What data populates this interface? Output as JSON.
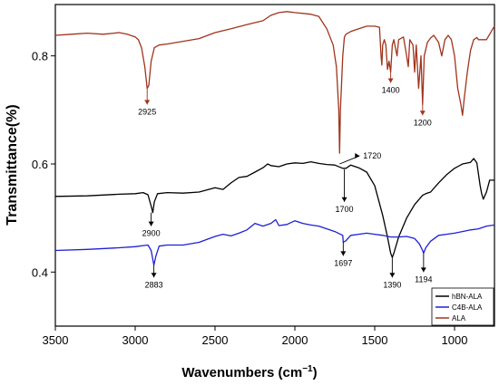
{
  "chart_data": {
    "type": "line",
    "title": "",
    "xlabel": "Wavenumbers",
    "xlabel_unit": "(cm",
    "xlabel_sup": "−1",
    "xlabel_close": ")",
    "ylabel": "Transmittance(%)",
    "xlim": [
      3500,
      750
    ],
    "x_reversed": true,
    "ylim": [
      0.3,
      0.895
    ],
    "grid": false,
    "legend_position": "bottom-right",
    "x_ticks": [
      3500,
      3000,
      2500,
      2000,
      1500,
      1000
    ],
    "x_tick_labels": [
      "3500",
      "3000",
      "2500",
      "2000",
      "1500",
      "1000"
    ],
    "y_ticks": [
      0.4,
      0.6,
      0.8
    ],
    "y_tick_labels": [
      "0.4",
      "0.6",
      "0.8"
    ],
    "series": [
      {
        "name": "hBN-ALA",
        "color": "#000000",
        "points": [
          [
            3500,
            0.54
          ],
          [
            3300,
            0.541
          ],
          [
            3100,
            0.544
          ],
          [
            3000,
            0.545
          ],
          [
            2950,
            0.547
          ],
          [
            2920,
            0.543
          ],
          [
            2900,
            0.522
          ],
          [
            2890,
            0.51
          ],
          [
            2880,
            0.53
          ],
          [
            2860,
            0.545
          ],
          [
            2800,
            0.547
          ],
          [
            2700,
            0.546
          ],
          [
            2600,
            0.548
          ],
          [
            2500,
            0.556
          ],
          [
            2450,
            0.553
          ],
          [
            2400,
            0.565
          ],
          [
            2350,
            0.575
          ],
          [
            2300,
            0.577
          ],
          [
            2250,
            0.585
          ],
          [
            2200,
            0.593
          ],
          [
            2170,
            0.6
          ],
          [
            2150,
            0.597
          ],
          [
            2100,
            0.595
          ],
          [
            2050,
            0.6
          ],
          [
            2000,
            0.602
          ],
          [
            1950,
            0.601
          ],
          [
            1900,
            0.604
          ],
          [
            1850,
            0.601
          ],
          [
            1800,
            0.599
          ],
          [
            1750,
            0.598
          ],
          [
            1700,
            0.592
          ],
          [
            1680,
            0.592
          ],
          [
            1650,
            0.598
          ],
          [
            1600,
            0.593
          ],
          [
            1550,
            0.585
          ],
          [
            1500,
            0.56
          ],
          [
            1450,
            0.505
          ],
          [
            1420,
            0.465
          ],
          [
            1400,
            0.435
          ],
          [
            1390,
            0.427
          ],
          [
            1380,
            0.435
          ],
          [
            1350,
            0.465
          ],
          [
            1300,
            0.5
          ],
          [
            1250,
            0.525
          ],
          [
            1200,
            0.542
          ],
          [
            1180,
            0.545
          ],
          [
            1150,
            0.548
          ],
          [
            1100,
            0.565
          ],
          [
            1050,
            0.58
          ],
          [
            1000,
            0.592
          ],
          [
            950,
            0.6
          ],
          [
            900,
            0.603
          ],
          [
            880,
            0.61
          ],
          [
            860,
            0.602
          ],
          [
            840,
            0.56
          ],
          [
            830,
            0.545
          ],
          [
            820,
            0.535
          ],
          [
            800,
            0.548
          ],
          [
            780,
            0.57
          ],
          [
            750,
            0.57
          ]
        ]
      },
      {
        "name": "C4B-ALA",
        "color": "#1f1fd6",
        "points": [
          [
            3500,
            0.44
          ],
          [
            3300,
            0.442
          ],
          [
            3100,
            0.445
          ],
          [
            3000,
            0.447
          ],
          [
            2950,
            0.449
          ],
          [
            2920,
            0.45
          ],
          [
            2900,
            0.44
          ],
          [
            2883,
            0.413
          ],
          [
            2870,
            0.43
          ],
          [
            2850,
            0.448
          ],
          [
            2800,
            0.45
          ],
          [
            2700,
            0.45
          ],
          [
            2600,
            0.455
          ],
          [
            2500,
            0.466
          ],
          [
            2450,
            0.47
          ],
          [
            2400,
            0.467
          ],
          [
            2350,
            0.472
          ],
          [
            2300,
            0.478
          ],
          [
            2250,
            0.49
          ],
          [
            2200,
            0.485
          ],
          [
            2150,
            0.49
          ],
          [
            2120,
            0.497
          ],
          [
            2100,
            0.486
          ],
          [
            2050,
            0.488
          ],
          [
            2000,
            0.495
          ],
          [
            1950,
            0.49
          ],
          [
            1900,
            0.487
          ],
          [
            1850,
            0.485
          ],
          [
            1800,
            0.48
          ],
          [
            1750,
            0.475
          ],
          [
            1700,
            0.468
          ],
          [
            1697,
            0.455
          ],
          [
            1680,
            0.458
          ],
          [
            1650,
            0.468
          ],
          [
            1600,
            0.47
          ],
          [
            1550,
            0.472
          ],
          [
            1500,
            0.47
          ],
          [
            1450,
            0.468
          ],
          [
            1400,
            0.465
          ],
          [
            1350,
            0.465
          ],
          [
            1300,
            0.466
          ],
          [
            1250,
            0.462
          ],
          [
            1220,
            0.452
          ],
          [
            1200,
            0.44
          ],
          [
            1194,
            0.435
          ],
          [
            1180,
            0.445
          ],
          [
            1150,
            0.457
          ],
          [
            1100,
            0.468
          ],
          [
            1050,
            0.47
          ],
          [
            1000,
            0.472
          ],
          [
            950,
            0.475
          ],
          [
            900,
            0.478
          ],
          [
            850,
            0.48
          ],
          [
            800,
            0.485
          ],
          [
            750,
            0.487
          ]
        ]
      },
      {
        "name": "ALA",
        "color": "#a0341c",
        "points": [
          [
            3500,
            0.838
          ],
          [
            3400,
            0.84
          ],
          [
            3300,
            0.842
          ],
          [
            3200,
            0.84
          ],
          [
            3100,
            0.843
          ],
          [
            3050,
            0.84
          ],
          [
            3000,
            0.835
          ],
          [
            2980,
            0.83
          ],
          [
            2960,
            0.815
          ],
          [
            2940,
            0.78
          ],
          [
            2925,
            0.74
          ],
          [
            2915,
            0.745
          ],
          [
            2900,
            0.79
          ],
          [
            2880,
            0.815
          ],
          [
            2850,
            0.82
          ],
          [
            2800,
            0.822
          ],
          [
            2700,
            0.827
          ],
          [
            2600,
            0.832
          ],
          [
            2500,
            0.843
          ],
          [
            2400,
            0.85
          ],
          [
            2300,
            0.858
          ],
          [
            2200,
            0.865
          ],
          [
            2150,
            0.875
          ],
          [
            2100,
            0.88
          ],
          [
            2050,
            0.882
          ],
          [
            2000,
            0.88
          ],
          [
            1900,
            0.877
          ],
          [
            1850,
            0.873
          ],
          [
            1800,
            0.85
          ],
          [
            1760,
            0.82
          ],
          [
            1740,
            0.78
          ],
          [
            1725,
            0.7
          ],
          [
            1720,
            0.62
          ],
          [
            1715,
            0.7
          ],
          [
            1700,
            0.8
          ],
          [
            1690,
            0.835
          ],
          [
            1680,
            0.84
          ],
          [
            1650,
            0.845
          ],
          [
            1600,
            0.85
          ],
          [
            1550,
            0.855
          ],
          [
            1500,
            0.855
          ],
          [
            1470,
            0.853
          ],
          [
            1460,
            0.8
          ],
          [
            1455,
            0.783
          ],
          [
            1450,
            0.82
          ],
          [
            1440,
            0.83
          ],
          [
            1430,
            0.82
          ],
          [
            1420,
            0.775
          ],
          [
            1410,
            0.79
          ],
          [
            1400,
            0.77
          ],
          [
            1390,
            0.82
          ],
          [
            1380,
            0.83
          ],
          [
            1360,
            0.8
          ],
          [
            1350,
            0.83
          ],
          [
            1320,
            0.835
          ],
          [
            1300,
            0.8
          ],
          [
            1290,
            0.78
          ],
          [
            1280,
            0.83
          ],
          [
            1260,
            0.82
          ],
          [
            1250,
            0.77
          ],
          [
            1240,
            0.82
          ],
          [
            1225,
            0.74
          ],
          [
            1210,
            0.8
          ],
          [
            1200,
            0.71
          ],
          [
            1190,
            0.8
          ],
          [
            1170,
            0.825
          ],
          [
            1150,
            0.833
          ],
          [
            1130,
            0.838
          ],
          [
            1100,
            0.825
          ],
          [
            1080,
            0.8
          ],
          [
            1060,
            0.83
          ],
          [
            1040,
            0.838
          ],
          [
            1020,
            0.83
          ],
          [
            1000,
            0.8
          ],
          [
            980,
            0.74
          ],
          [
            960,
            0.71
          ],
          [
            950,
            0.69
          ],
          [
            940,
            0.72
          ],
          [
            920,
            0.77
          ],
          [
            900,
            0.81
          ],
          [
            880,
            0.83
          ],
          [
            860,
            0.834
          ],
          [
            850,
            0.83
          ],
          [
            800,
            0.83
          ],
          [
            780,
            0.84
          ],
          [
            760,
            0.85
          ],
          [
            750,
            0.855
          ]
        ]
      }
    ],
    "annotations": [
      {
        "label": "2925",
        "x": 2925,
        "y_from": 0.74,
        "y_to": 0.71,
        "direction": "down",
        "color": "#a0341c"
      },
      {
        "label": "1400",
        "x": 1400,
        "y_from": 0.77,
        "y_to": 0.75,
        "direction": "down",
        "color": "#a0341c"
      },
      {
        "label": "1200",
        "x": 1200,
        "y_from": 0.71,
        "y_to": 0.69,
        "direction": "down",
        "color": "#a0341c"
      },
      {
        "label": "1720",
        "x": 1720,
        "y_from": 0.6,
        "y_to": 0.615,
        "direction": "right",
        "color": "#000000"
      },
      {
        "label": "2900",
        "x": 2900,
        "y_from": 0.51,
        "y_to": 0.485,
        "direction": "down",
        "color": "#000000"
      },
      {
        "label": "1700",
        "x": 1690,
        "y_from": 0.59,
        "y_to": 0.53,
        "direction": "down",
        "color": "#000000"
      },
      {
        "label": "1390",
        "x": 1390,
        "y_from": 0.427,
        "y_to": 0.39,
        "direction": "down",
        "color": "#000000"
      },
      {
        "label": "2883",
        "x": 2883,
        "y_from": 0.413,
        "y_to": 0.39,
        "direction": "down",
        "color": "#000000"
      },
      {
        "label": "1697",
        "x": 1697,
        "y_from": 0.455,
        "y_to": 0.43,
        "direction": "down",
        "color": "#000000"
      },
      {
        "label": "1194",
        "x": 1194,
        "y_from": 0.435,
        "y_to": 0.4,
        "direction": "down",
        "color": "#000000"
      }
    ]
  }
}
